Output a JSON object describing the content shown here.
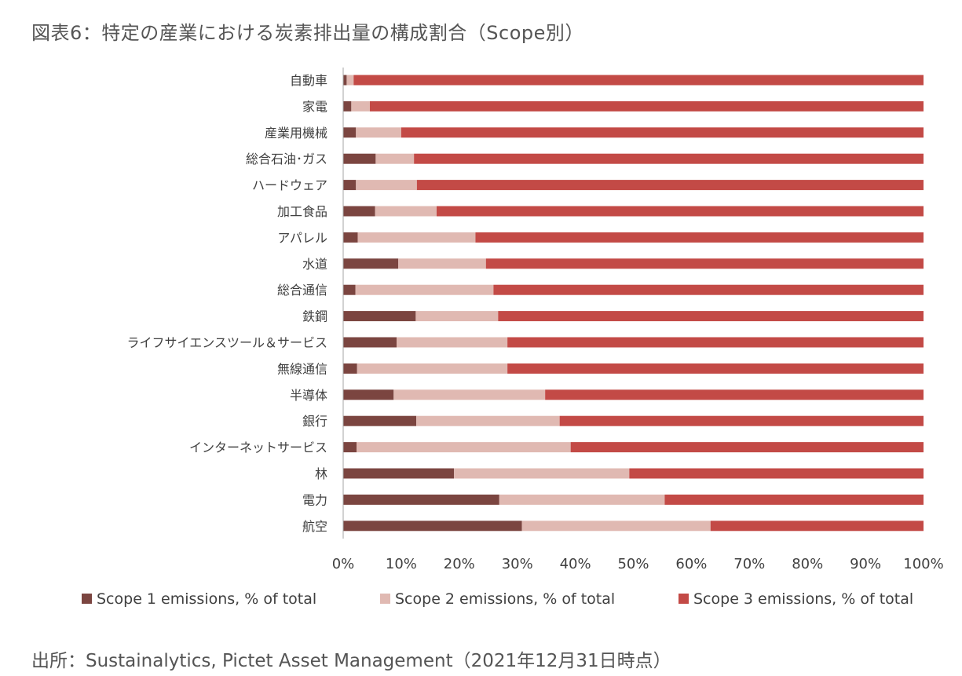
{
  "title": "図表6：特定の産業における炭素排出量の構成割合（Scope別）",
  "source": "出所：Sustainalytics, Pictet Asset Management（2021年12月31日時点）",
  "colors": {
    "scope1": "#7b4540",
    "scope2": "#e0b9b2",
    "scope3": "#c34a46",
    "axis": "#a6a6a6"
  },
  "chart_data": {
    "type": "bar",
    "orientation": "horizontal",
    "stacked": true,
    "title": "図表6：特定の産業における炭素排出量の構成割合（Scope別）",
    "categories": [
      "自動車",
      "家電",
      "産業用機械",
      "総合石油･ガス",
      "ハードウェア",
      "加工食品",
      "アパレル",
      "水道",
      "総合通信",
      "鉄鋼",
      "ライフサイエンスツール＆サービス",
      "無線通信",
      "半導体",
      "銀行",
      "インターネットサービス",
      "林",
      "電力",
      "航空"
    ],
    "series": [
      {
        "name": "Scope 1 emissions, % of total",
        "values": [
          0.6,
          1.4,
          2.2,
          5.6,
          2.2,
          5.5,
          2.5,
          9.5,
          2.1,
          12.5,
          9.2,
          2.4,
          8.7,
          12.6,
          2.3,
          19.1,
          26.9,
          30.8
        ]
      },
      {
        "name": "Scope 2 emissions, % of total",
        "values": [
          1.2,
          3.2,
          7.8,
          6.6,
          10.5,
          10.6,
          20.3,
          15.1,
          23.8,
          14.2,
          19.1,
          25.9,
          26.1,
          24.7,
          36.9,
          30.2,
          28.5,
          32.5
        ]
      },
      {
        "name": "Scope 3 emissions, % of total",
        "values": [
          98.2,
          95.4,
          90.0,
          87.8,
          87.3,
          83.9,
          77.2,
          75.4,
          74.1,
          73.3,
          71.7,
          71.7,
          65.2,
          62.7,
          60.8,
          50.7,
          44.6,
          36.7
        ]
      }
    ],
    "xlim": [
      0,
      100
    ],
    "x_ticks": [
      "0%",
      "10%",
      "20%",
      "30%",
      "40%",
      "50%",
      "60%",
      "70%",
      "80%",
      "90%",
      "100%"
    ],
    "legend_position": "bottom",
    "grid": false
  }
}
